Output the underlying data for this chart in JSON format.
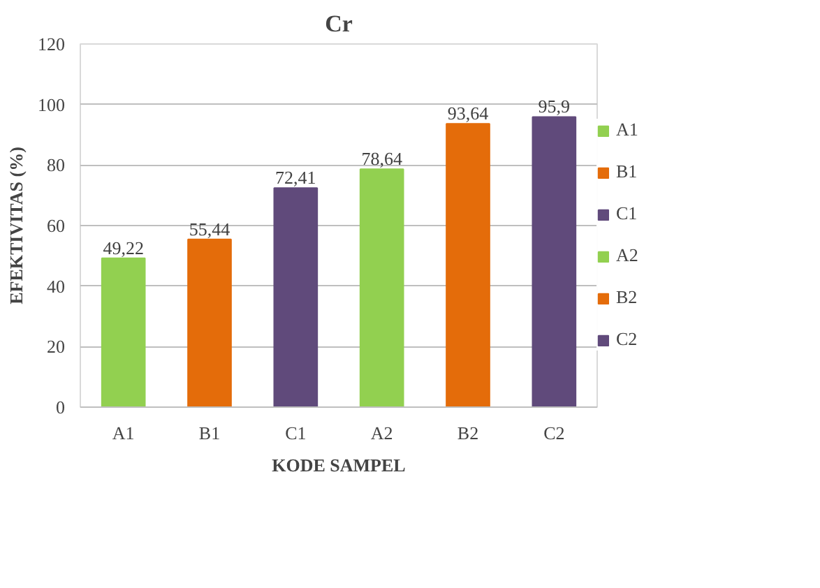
{
  "chart_data": {
    "type": "bar",
    "title": "Cr",
    "xlabel": "KODE SAMPEL",
    "ylabel": "EFEKTIVITAS (%)",
    "categories": [
      "A1",
      "B1",
      "C1",
      "A2",
      "B2",
      "C2"
    ],
    "stacked": true,
    "series": [
      {
        "name": "A1",
        "color": "#92d050",
        "values": [
          49.22,
          null,
          null,
          null,
          null,
          null
        ],
        "value_labels": [
          "49,22",
          null,
          null,
          null,
          null,
          null
        ]
      },
      {
        "name": "B1",
        "color": "#e46c0a",
        "values": [
          null,
          55.44,
          null,
          null,
          null,
          null
        ],
        "value_labels": [
          null,
          "55,44",
          null,
          null,
          null,
          null
        ]
      },
      {
        "name": "C1",
        "color": "#604a7b",
        "values": [
          null,
          null,
          72.41,
          null,
          null,
          null
        ],
        "value_labels": [
          null,
          null,
          "72,41",
          null,
          null,
          null
        ]
      },
      {
        "name": "A2",
        "color": "#92d050",
        "values": [
          null,
          null,
          null,
          78.64,
          null,
          null
        ],
        "value_labels": [
          null,
          null,
          null,
          "78,64",
          null,
          null
        ]
      },
      {
        "name": "B2",
        "color": "#e46c0a",
        "values": [
          null,
          null,
          null,
          null,
          93.64,
          null
        ],
        "value_labels": [
          null,
          null,
          null,
          null,
          "93,64",
          null
        ]
      },
      {
        "name": "C2",
        "color": "#604a7b",
        "values": [
          null,
          null,
          null,
          null,
          null,
          95.9
        ],
        "value_labels": [
          null,
          null,
          null,
          null,
          null,
          "95,9"
        ]
      }
    ],
    "ylim": [
      0,
      120
    ],
    "yticks": [
      0,
      20,
      40,
      60,
      80,
      100,
      120
    ],
    "grid": "y",
    "legend": "right"
  }
}
